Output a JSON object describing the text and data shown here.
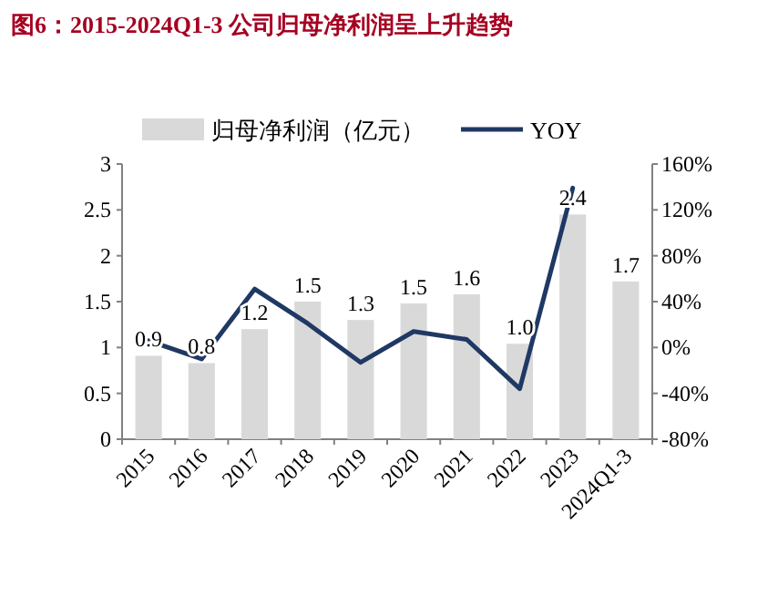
{
  "chart_data": {
    "type": "bar",
    "title": "图6：2015-2024Q1-3 公司归母净利润呈上升趋势",
    "categories": [
      "2015",
      "2016",
      "2017",
      "2018",
      "2019",
      "2020",
      "2021",
      "2022",
      "2023",
      "2024Q1-3"
    ],
    "series": [
      {
        "name": "归母净利润（亿元）",
        "color": "#d9d9d9",
        "values": [
          0.91,
          0.83,
          1.2,
          1.5,
          1.3,
          1.48,
          1.58,
          1.04,
          2.45,
          1.72
        ],
        "value_labels": [
          "0.9",
          "0.8",
          "1.2",
          "1.5",
          "1.3",
          "1.5",
          "1.6",
          "1.0",
          "2.4",
          "1.7"
        ]
      },
      {
        "name": "YOY",
        "type": "line",
        "axis": "y2",
        "color": "#1f3864",
        "values": [
          6,
          -10,
          51,
          21,
          -13,
          14,
          7,
          -36,
          139,
          null
        ]
      }
    ],
    "ylim": [
      0,
      3
    ],
    "yticks": [
      0,
      0.5,
      1,
      1.5,
      2,
      2.5,
      3
    ],
    "y2lim": [
      -80,
      160
    ],
    "y2ticks": [
      {
        "value": -80,
        "label": "-80%"
      },
      {
        "value": -40,
        "label": "-40%"
      },
      {
        "value": 0,
        "label": "0%"
      },
      {
        "value": 40,
        "label": "40%"
      },
      {
        "value": 80,
        "label": "80%"
      },
      {
        "value": 120,
        "label": "120%"
      },
      {
        "value": 160,
        "label": "160%"
      }
    ],
    "legend": "top"
  }
}
